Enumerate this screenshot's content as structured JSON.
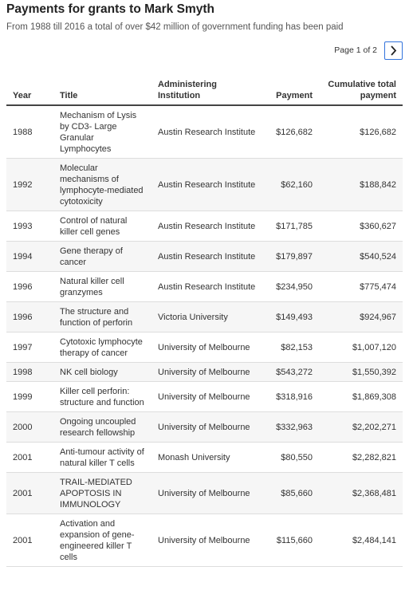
{
  "header": {
    "title": "Payments for grants to Mark Smyth",
    "subtitle": "From 1988 till 2016 a total of over $42 million of government funding has been paid"
  },
  "pagination": {
    "label": "Page 1 of 2"
  },
  "table": {
    "columns": [
      "Year",
      "Title",
      "Administering Institution",
      "Payment",
      "Cumulative total payment"
    ],
    "rows": [
      [
        "1988",
        "Mechanism of Lysis by CD3- Large Granular Lymphocytes",
        "Austin Research Institute",
        "$126,682",
        "$126,682"
      ],
      [
        "1992",
        "Molecular mechanisms of lymphocyte-mediated cytotoxicity",
        "Austin Research Institute",
        "$62,160",
        "$188,842"
      ],
      [
        "1993",
        "Control of natural killer cell genes",
        "Austin Research Institute",
        "$171,785",
        "$360,627"
      ],
      [
        "1994",
        "Gene therapy of cancer",
        "Austin Research Institute",
        "$179,897",
        "$540,524"
      ],
      [
        "1996",
        "Natural killer cell granzymes",
        "Austin Research Institute",
        "$234,950",
        "$775,474"
      ],
      [
        "1996",
        "The structure and function of perforin",
        "Victoria University",
        "$149,493",
        "$924,967"
      ],
      [
        "1997",
        "Cytotoxic lymphocyte therapy of cancer",
        "University of Melbourne",
        "$82,153",
        "$1,007,120"
      ],
      [
        "1998",
        "NK cell biology",
        "University of Melbourne",
        "$543,272",
        "$1,550,392"
      ],
      [
        "1999",
        "Killer cell perforin: structure and function",
        "University of Melbourne",
        "$318,916",
        "$1,869,308"
      ],
      [
        "2000",
        "Ongoing uncoupled research fellowship",
        "University of Melbourne",
        "$332,963",
        "$2,202,271"
      ],
      [
        "2001",
        "Anti-tumour activity of natural killer T cells",
        "Monash University",
        "$80,550",
        "$2,282,821"
      ],
      [
        "2001",
        "TRAIL-MEDIATED APOPTOSIS IN IMMUNOLOGY",
        "University of Melbourne",
        "$85,660",
        "$2,368,481"
      ],
      [
        "2001",
        "Activation and expansion of gene-engineered killer T cells",
        "University of Melbourne",
        "$115,660",
        "$2,484,141"
      ]
    ]
  }
}
